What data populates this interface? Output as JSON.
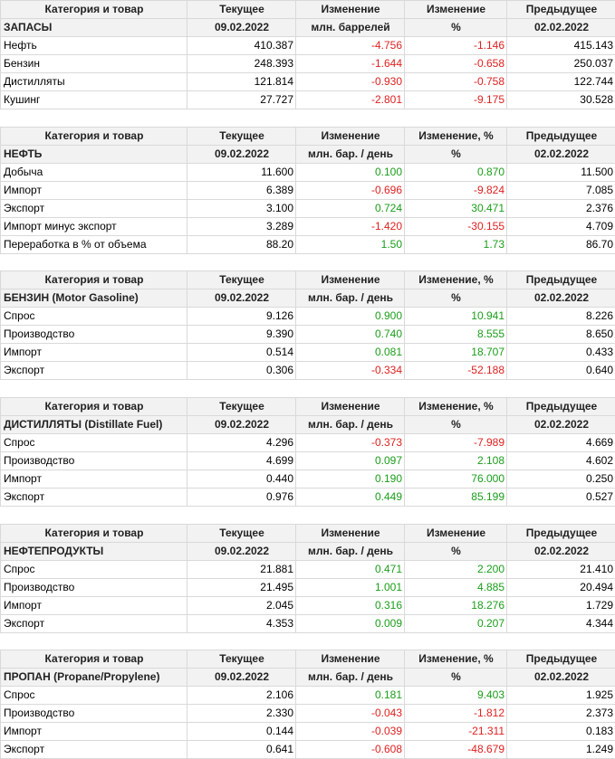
{
  "tables": [
    {
      "header": [
        "Категория и товар",
        "Текущее",
        "Изменение",
        "Изменение",
        "Предыдущее"
      ],
      "subheader": [
        "ЗАПАСЫ",
        "09.02.2022",
        "млн. баррелей",
        "%",
        "02.02.2022"
      ],
      "rows": [
        {
          "name": "Нефть",
          "current": "410.387",
          "change": "-4.756",
          "pct": "-1.146",
          "previous": "415.143"
        },
        {
          "name": "Бензин",
          "current": "248.393",
          "change": "-1.644",
          "pct": "-0.658",
          "previous": "250.037"
        },
        {
          "name": "Дистилляты",
          "current": "121.814",
          "change": "-0.930",
          "pct": "-0.758",
          "previous": "122.744"
        },
        {
          "name": "Кушинг",
          "current": "27.727",
          "change": "-2.801",
          "pct": "-9.175",
          "previous": "30.528"
        }
      ]
    },
    {
      "header": [
        "Категория и товар",
        "Текущее",
        "Изменение",
        "Изменение, %",
        "Предыдущее"
      ],
      "subheader": [
        "НЕФТЬ",
        "09.02.2022",
        "млн. бар. / день",
        "%",
        "02.02.2022"
      ],
      "rows": [
        {
          "name": "Добыча",
          "current": "11.600",
          "change": "0.100",
          "pct": "0.870",
          "previous": "11.500"
        },
        {
          "name": "Импорт",
          "current": "6.389",
          "change": "-0.696",
          "pct": "-9.824",
          "previous": "7.085"
        },
        {
          "name": "Экспорт",
          "current": "3.100",
          "change": "0.724",
          "pct": "30.471",
          "previous": "2.376"
        },
        {
          "name": "Импорт минус экспорт",
          "current": "3.289",
          "change": "-1.420",
          "pct": "-30.155",
          "previous": "4.709"
        },
        {
          "name": "Переработка в % от объема",
          "current": "88.20",
          "change": "1.50",
          "pct": "1.73",
          "previous": "86.70"
        }
      ]
    },
    {
      "header": [
        "Категория и товар",
        "Текущее",
        "Изменение",
        "Изменение, %",
        "Предыдущее"
      ],
      "subheader": [
        "БЕНЗИН (Motor Gasoline)",
        "09.02.2022",
        "млн. бар. / день",
        "%",
        "02.02.2022"
      ],
      "rows": [
        {
          "name": "Спрос",
          "current": "9.126",
          "change": "0.900",
          "pct": "10.941",
          "previous": "8.226"
        },
        {
          "name": "Производство",
          "current": "9.390",
          "change": "0.740",
          "pct": "8.555",
          "previous": "8.650"
        },
        {
          "name": "Импорт",
          "current": "0.514",
          "change": "0.081",
          "pct": "18.707",
          "previous": "0.433"
        },
        {
          "name": "Экспорт",
          "current": "0.306",
          "change": "-0.334",
          "pct": "-52.188",
          "previous": "0.640"
        }
      ]
    },
    {
      "header": [
        "Категория и товар",
        "Текущее",
        "Изменение",
        "Изменение, %",
        "Предыдущее"
      ],
      "subheader": [
        "ДИСТИЛЛЯТЫ (Distillate Fuel)",
        "09.02.2022",
        "млн. бар. / день",
        "%",
        "02.02.2022"
      ],
      "rows": [
        {
          "name": "Спрос",
          "current": "4.296",
          "change": "-0.373",
          "pct": "-7.989",
          "previous": "4.669"
        },
        {
          "name": "Производство",
          "current": "4.699",
          "change": "0.097",
          "pct": "2.108",
          "previous": "4.602"
        },
        {
          "name": "Импорт",
          "current": "0.440",
          "change": "0.190",
          "pct": "76.000",
          "previous": "0.250"
        },
        {
          "name": "Экспорт",
          "current": "0.976",
          "change": "0.449",
          "pct": "85.199",
          "previous": "0.527"
        }
      ]
    },
    {
      "header": [
        "Категория и товар",
        "Текущее",
        "Изменение",
        "Изменение",
        "Предыдущее"
      ],
      "subheader": [
        "НЕФТЕПРОДУКТЫ",
        "09.02.2022",
        "млн. бар. / день",
        "%",
        "02.02.2022"
      ],
      "rows": [
        {
          "name": "Спрос",
          "current": "21.881",
          "change": "0.471",
          "pct": "2.200",
          "previous": "21.410"
        },
        {
          "name": "Производство",
          "current": "21.495",
          "change": "1.001",
          "pct": "4.885",
          "previous": "20.494"
        },
        {
          "name": "Импорт",
          "current": "2.045",
          "change": "0.316",
          "pct": "18.276",
          "previous": "1.729"
        },
        {
          "name": "Экспорт",
          "current": "4.353",
          "change": "0.009",
          "pct": "0.207",
          "previous": "4.344"
        }
      ]
    },
    {
      "header": [
        "Категория и товар",
        "Текущее",
        "Изменение",
        "Изменение, %",
        "Предыдущее"
      ],
      "subheader": [
        "ПРОПАН (Propane/Propylene)",
        "09.02.2022",
        "млн. бар. / день",
        "%",
        "02.02.2022"
      ],
      "rows": [
        {
          "name": "Спрос",
          "current": "2.106",
          "change": "0.181",
          "pct": "9.403",
          "previous": "1.925"
        },
        {
          "name": "Производство",
          "current": "2.330",
          "change": "-0.043",
          "pct": "-1.812",
          "previous": "2.373"
        },
        {
          "name": "Импорт",
          "current": "0.144",
          "change": "-0.039",
          "pct": "-21.311",
          "previous": "0.183"
        },
        {
          "name": "Экспорт",
          "current": "0.641",
          "change": "-0.608",
          "pct": "-48.679",
          "previous": "1.249"
        }
      ]
    }
  ],
  "colors": {
    "positive": "#1a9e1a",
    "negative": "#e02020",
    "header_bg": "#f2f2f2",
    "border": "#d9d9d9"
  }
}
